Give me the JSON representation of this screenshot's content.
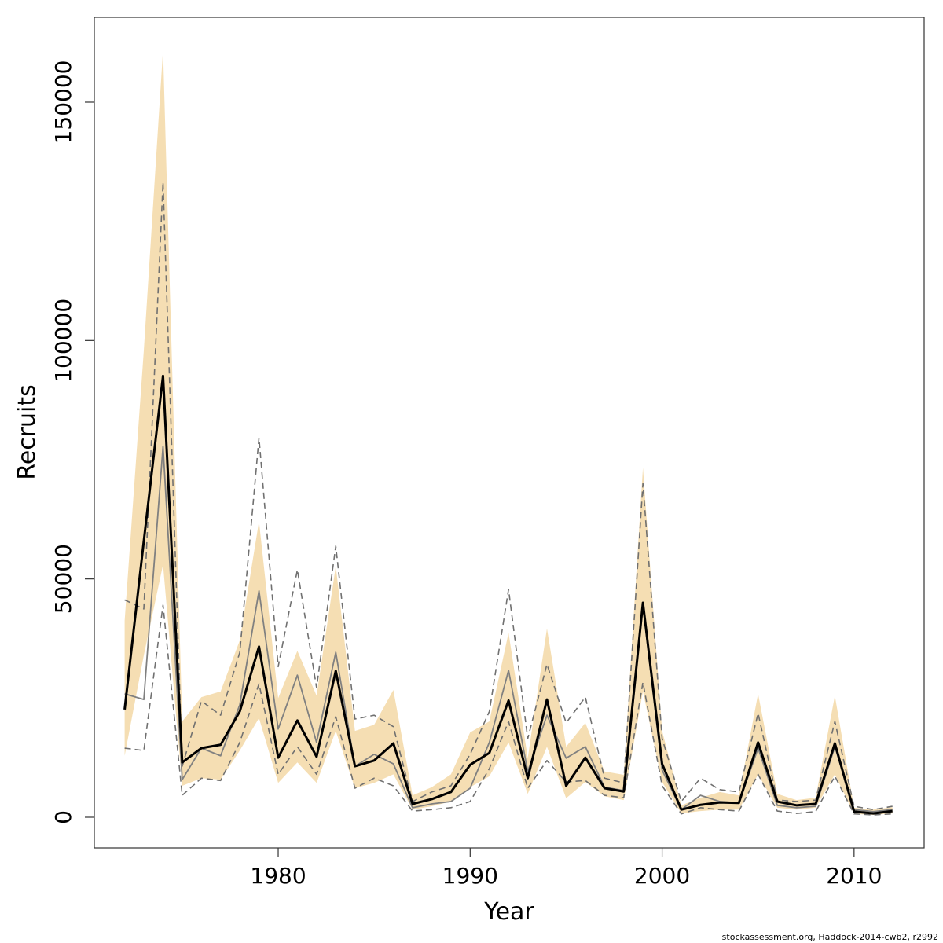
{
  "chart_data": {
    "type": "line",
    "xlabel": "Year",
    "ylabel": "Recruits",
    "footer": "stockassessment.org, Haddock-2014-cwb2, r2992",
    "x": [
      1972,
      1973,
      1974,
      1975,
      1976,
      1977,
      1978,
      1979,
      1980,
      1981,
      1982,
      1983,
      1984,
      1985,
      1986,
      1987,
      1988,
      1989,
      1990,
      1991,
      1992,
      1993,
      1994,
      1995,
      1996,
      1997,
      1998,
      1999,
      2000,
      2001,
      2002,
      2003,
      2004,
      2005,
      2006,
      2007,
      2008,
      2009,
      2010,
      2011,
      2012
    ],
    "xlim": [
      1970.42,
      2013.65
    ],
    "xticks": [
      1980,
      1990,
      2000,
      2010
    ],
    "ylim": [
      -6430,
      167800
    ],
    "yticks": [
      0,
      50000,
      100000,
      150000
    ],
    "band": {
      "color": "#f5deb3",
      "upper": [
        41200,
        98000,
        161000,
        20100,
        25200,
        26400,
        37100,
        62100,
        25000,
        34900,
        25500,
        52700,
        18100,
        19400,
        26700,
        4600,
        6300,
        9000,
        17800,
        20100,
        38700,
        12400,
        39600,
        14800,
        19800,
        9600,
        8900,
        73300,
        18100,
        2500,
        4100,
        5300,
        4600,
        25900,
        4900,
        3600,
        4100,
        25500,
        2000,
        1600,
        2100
      ],
      "lower": [
        12900,
        34000,
        53000,
        6600,
        8200,
        7900,
        14000,
        20800,
        7200,
        11500,
        7200,
        18100,
        6100,
        7200,
        9000,
        1600,
        2300,
        3300,
        6300,
        8600,
        15700,
        4900,
        14800,
        4000,
        7400,
        4400,
        3600,
        26400,
        7400,
        800,
        1300,
        1600,
        1600,
        9000,
        2000,
        1600,
        2000,
        9000,
        700,
        500,
        800
      ]
    },
    "series": [
      {
        "color": "#707070",
        "dash": true,
        "width": 1.6,
        "values": [
          45600,
          43700,
          133200,
          10700,
          24400,
          21400,
          34600,
          79600,
          31600,
          51900,
          27200,
          56900,
          20600,
          21400,
          19000,
          3300,
          5300,
          6600,
          13200,
          22200,
          47800,
          16500,
          32100,
          19800,
          25200,
          8200,
          7200,
          70000,
          16500,
          3300,
          8200,
          5800,
          5300,
          21800,
          3600,
          3300,
          3600,
          20100,
          2300,
          1600,
          2300
        ]
      },
      {
        "color": "#707070",
        "dash": true,
        "width": 1.6,
        "values": [
          14500,
          14000,
          44500,
          4600,
          8200,
          7700,
          15700,
          28000,
          9000,
          14800,
          9000,
          21100,
          6100,
          8200,
          6600,
          1300,
          1600,
          2000,
          3300,
          10200,
          20100,
          6100,
          11900,
          7400,
          7700,
          4600,
          4100,
          28300,
          6600,
          700,
          2000,
          1600,
          1300,
          9000,
          1300,
          800,
          1200,
          8600,
          700,
          500,
          700
        ]
      },
      {
        "color": "#808080",
        "dash": false,
        "width": 1.8,
        "values": [
          25900,
          24700,
          77800,
          7900,
          14500,
          12900,
          23600,
          47500,
          18500,
          29800,
          15700,
          34600,
          10700,
          13200,
          11200,
          2000,
          2800,
          3300,
          6100,
          15700,
          30800,
          9600,
          21400,
          12400,
          14800,
          6300,
          5600,
          44500,
          9900,
          1600,
          4600,
          3300,
          3000,
          14500,
          2500,
          2000,
          2300,
          14800,
          1600,
          1200,
          1600
        ]
      },
      {
        "color": "#000000",
        "dash": false,
        "width": 3,
        "values": [
          22600,
          58000,
          92600,
          11500,
          14500,
          15200,
          22200,
          35800,
          12500,
          20300,
          12700,
          30700,
          10700,
          11900,
          15500,
          2800,
          3800,
          5300,
          11000,
          13500,
          24500,
          8200,
          24700,
          6600,
          12500,
          6100,
          5400,
          45000,
          11200,
          1600,
          2600,
          3100,
          3000,
          15700,
          3300,
          2500,
          2800,
          15500,
          1200,
          800,
          1300
        ]
      }
    ]
  }
}
